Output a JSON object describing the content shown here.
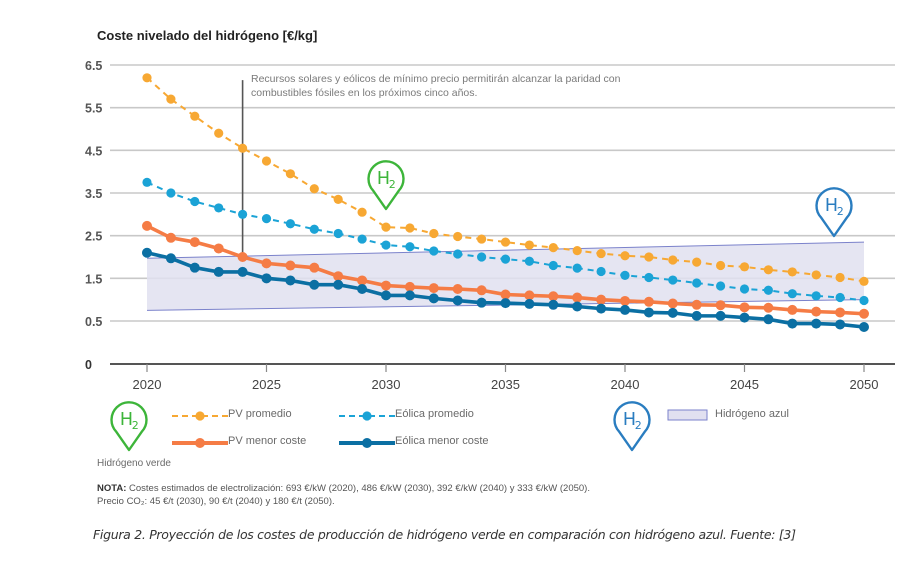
{
  "chart_data": {
    "type": "line",
    "title": "Coste nivelado del hidrógeno [€/kg]",
    "xlabel": "",
    "ylabel": "Coste nivelado del hidrógeno [€/kg]",
    "ylim": [
      0,
      6.5
    ],
    "xlim": [
      2020,
      2050
    ],
    "yticks": [
      "0",
      "0.5",
      "1.5",
      "2.5",
      "3.5",
      "4.5",
      "5.5",
      "6.5"
    ],
    "ytick_values": [
      0,
      0.5,
      1.5,
      2.5,
      3.5,
      4.5,
      5.5,
      6.5
    ],
    "xticks": [
      "2020",
      "2025",
      "2030",
      "2035",
      "2040",
      "2045",
      "2050"
    ],
    "xtick_values": [
      2020,
      2025,
      2030,
      2035,
      2040,
      2045,
      2050
    ],
    "grid": true,
    "x": [
      2020,
      2021,
      2022,
      2023,
      2024,
      2025,
      2026,
      2027,
      2028,
      2029,
      2030,
      2031,
      2032,
      2033,
      2034,
      2035,
      2036,
      2037,
      2038,
      2039,
      2040,
      2041,
      2042,
      2043,
      2044,
      2045,
      2046,
      2047,
      2048,
      2049,
      2050
    ],
    "series": [
      {
        "name": "PV promedio",
        "style": "dashed",
        "color": "#F7A833",
        "values": [
          6.2,
          5.7,
          5.3,
          4.9,
          4.55,
          4.25,
          3.95,
          3.6,
          3.35,
          3.05,
          2.7,
          2.68,
          2.55,
          2.48,
          2.42,
          2.35,
          2.28,
          2.22,
          2.15,
          2.08,
          2.03,
          2.0,
          1.93,
          1.88,
          1.8,
          1.77,
          1.7,
          1.65,
          1.58,
          1.52,
          1.43
        ]
      },
      {
        "name": "Eólica promedio",
        "style": "dashed",
        "color": "#1BA3D6",
        "values": [
          3.75,
          3.5,
          3.3,
          3.15,
          3.0,
          2.9,
          2.78,
          2.65,
          2.55,
          2.42,
          2.28,
          2.24,
          2.14,
          2.07,
          2.0,
          1.95,
          1.9,
          1.8,
          1.74,
          1.66,
          1.57,
          1.52,
          1.46,
          1.39,
          1.32,
          1.25,
          1.22,
          1.14,
          1.09,
          1.05,
          0.98
        ]
      },
      {
        "name": "PV menor coste",
        "style": "solid",
        "color": "#F57C45",
        "values": [
          2.73,
          2.45,
          2.35,
          2.2,
          2.0,
          1.85,
          1.8,
          1.75,
          1.55,
          1.45,
          1.33,
          1.3,
          1.27,
          1.25,
          1.22,
          1.12,
          1.1,
          1.08,
          1.05,
          1.0,
          0.97,
          0.95,
          0.91,
          0.88,
          0.87,
          0.82,
          0.81,
          0.76,
          0.72,
          0.7,
          0.67
        ]
      },
      {
        "name": "Eólica menor coste",
        "style": "solid",
        "color": "#0B6FA3",
        "values": [
          2.1,
          1.97,
          1.75,
          1.65,
          1.65,
          1.5,
          1.45,
          1.35,
          1.35,
          1.25,
          1.1,
          1.1,
          1.03,
          0.98,
          0.93,
          0.92,
          0.9,
          0.88,
          0.84,
          0.79,
          0.76,
          0.7,
          0.69,
          0.62,
          0.62,
          0.58,
          0.54,
          0.47,
          0.47,
          0.46,
          0.43
        ]
      }
    ],
    "band": {
      "name": "Hidrógeno azul",
      "x": [
        2020,
        2050
      ],
      "lower": [
        0.75,
        1.0
      ],
      "upper": [
        1.97,
        2.35
      ],
      "color": "#E1E0F0",
      "edge": "#7B82CB"
    },
    "vline": {
      "x": 2024,
      "from": 2.0,
      "to": 6.1
    },
    "annotation": "Recursos solares y eólicos de mínimo precio permitirán alcanzar la paridad con combustibles fósiles en los próximos cinco años.",
    "legend": {
      "placement": "bottom",
      "entries": [
        "PV promedio",
        "Eólica promedio",
        "PV menor coste",
        "Eólica menor coste",
        "Hidrógeno azul"
      ]
    }
  },
  "labels": {
    "title": "Coste nivelado del hidrógeno [€/kg]",
    "annotation_line1": "Recursos solares y eólicos de mínimo precio permitirán alcanzar la paridad con",
    "annotation_line2": "combustibles fósiles en los próximos cinco años.",
    "legend_pv_promedio": "PV promedio",
    "legend_eolica_promedio": "Eólica promedio",
    "legend_pv_menor": "PV menor coste",
    "legend_eolica_menor": "Eólica menor coste",
    "legend_azul": "Hidrógeno azul",
    "hidrogeno_verde": "Hidrógeno verde",
    "h2_icon_text": "H₂",
    "note_bold": "NOTA:",
    "note_line1": " Costes estimados de electrolización: 693 €/kW (2020), 486 €/kW (2030), 392 €/kW (2040) y 333 €/kW (2050).",
    "note_line2": "Precio CO₂: 45 €/t (2030), 90 €/t (2040) y 180 €/t (2050).",
    "caption": "Figura 2. Proyección de los costes de producción de hidrógeno verde en comparación con hidrógeno azul. Fuente: [3]"
  },
  "colors": {
    "green_h2": "#3DB53A",
    "blue_h2": "#2A7DC0"
  }
}
